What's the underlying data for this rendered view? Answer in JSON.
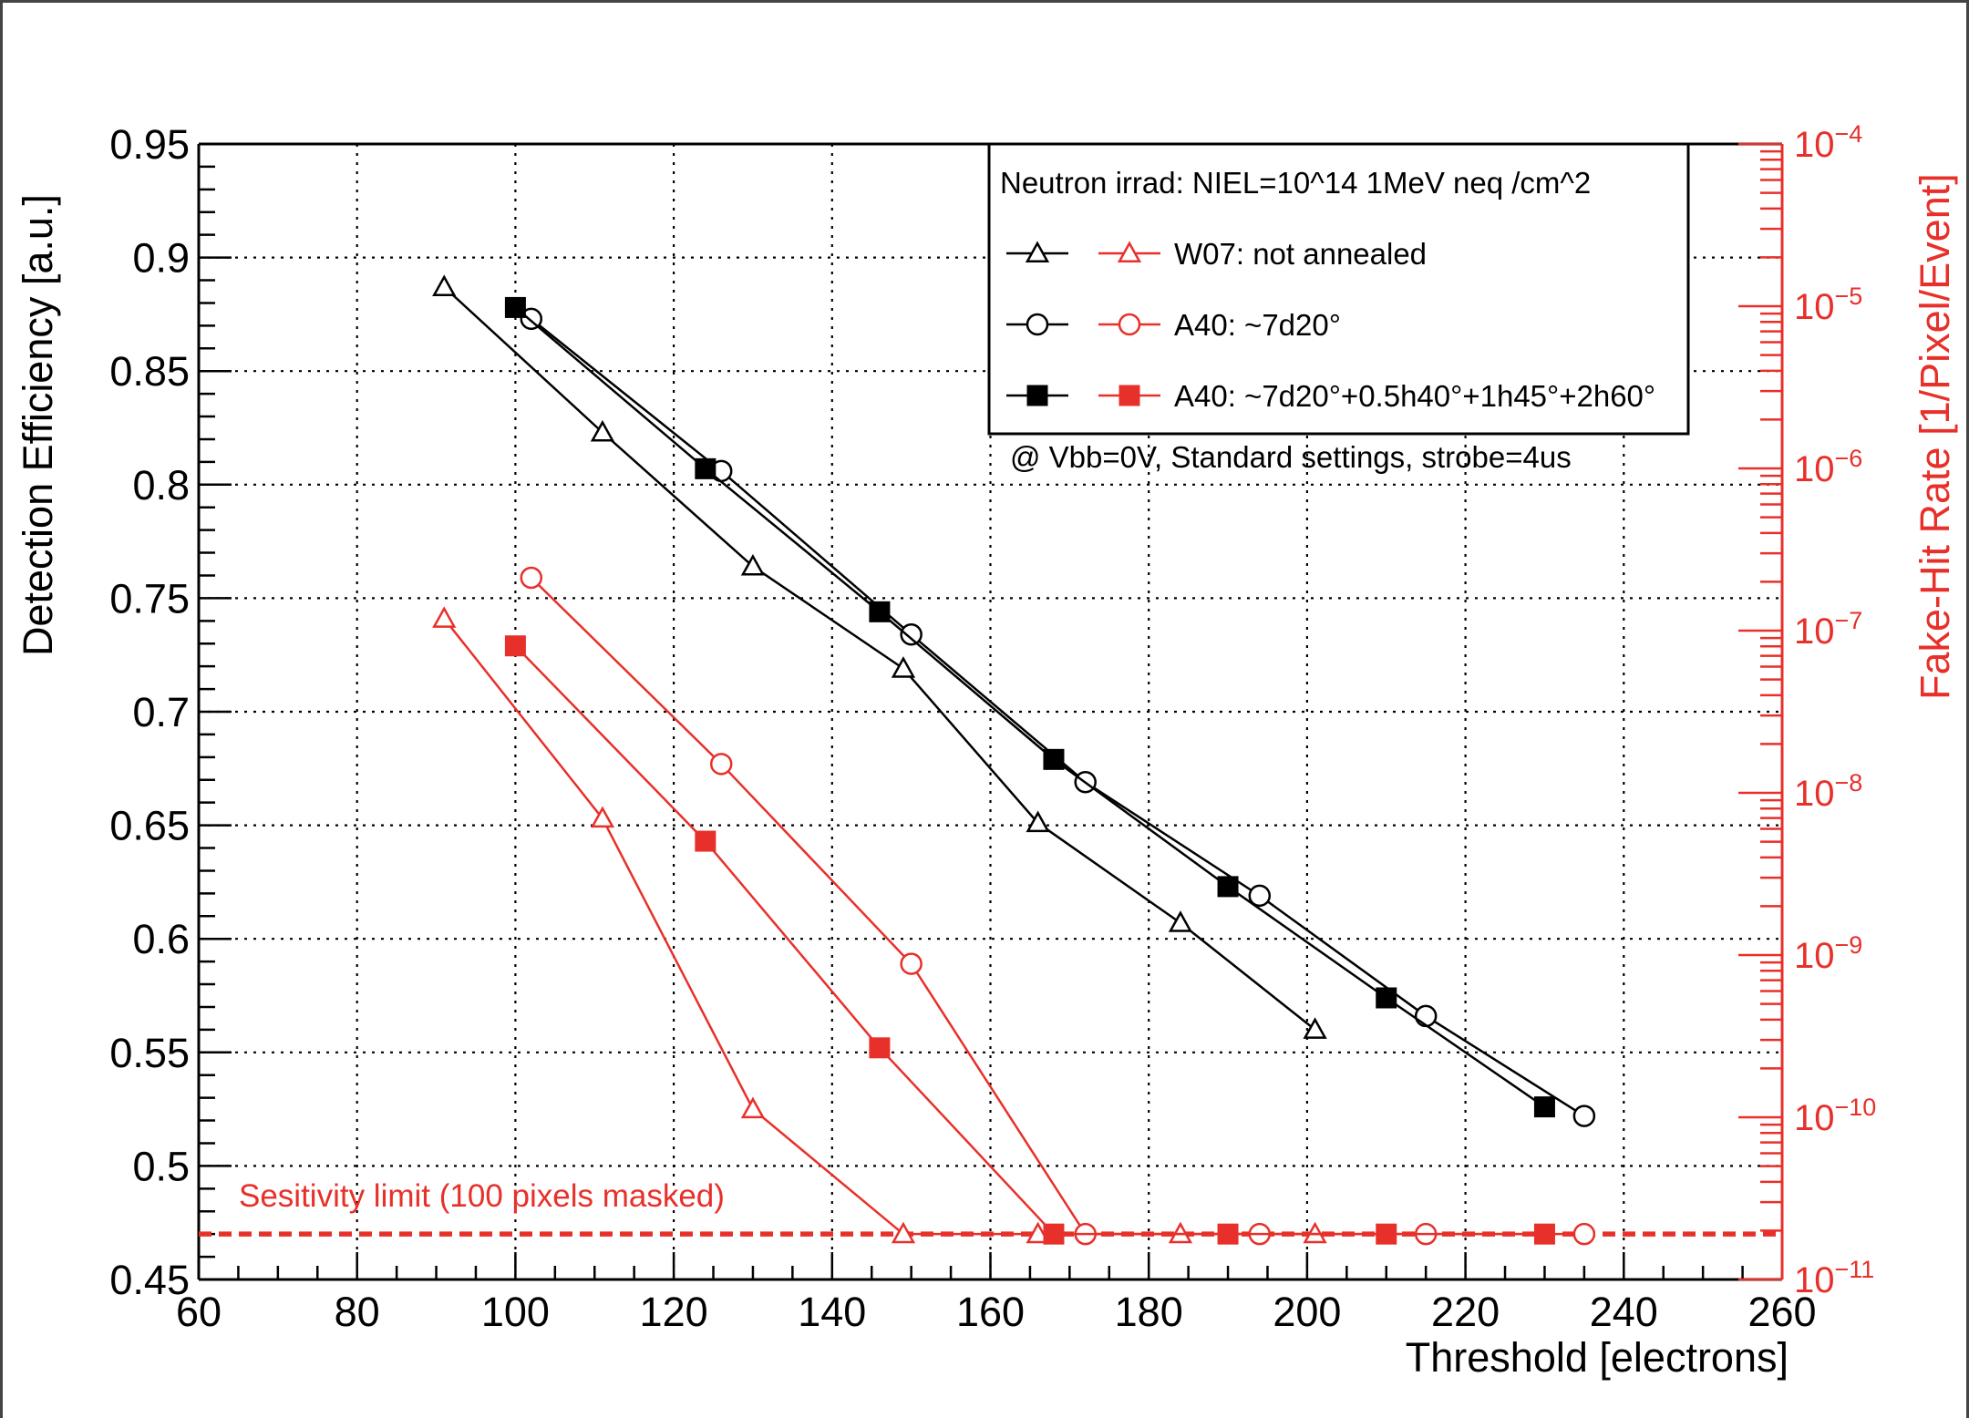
{
  "colors": {
    "black": "#000000",
    "red": "#e8302a",
    "grid": "#000000"
  },
  "chart_data": {
    "type": "line",
    "title": "",
    "xlabel": "Threshold [electrons]",
    "ylabel": "Detection Efficiency [a.u.]",
    "y2label": "Fake-Hit Rate [1/Pixel/Event]",
    "xlim": [
      60,
      260
    ],
    "ylim": [
      0.45,
      0.95
    ],
    "y2lim_log10": [
      -11,
      -4
    ],
    "y2_scale": "log",
    "grid": true,
    "x_ticks": [
      "60",
      "80",
      "100",
      "120",
      "140",
      "160",
      "180",
      "200",
      "220",
      "240",
      "260"
    ],
    "y_ticks": [
      "0.45",
      "0.5",
      "0.55",
      "0.6",
      "0.65",
      "0.7",
      "0.75",
      "0.8",
      "0.85",
      "0.9",
      "0.95"
    ],
    "y2_ticks": [
      {
        "base": "10",
        "exp": "-11"
      },
      {
        "base": "10",
        "exp": "-10"
      },
      {
        "base": "10",
        "exp": "-9"
      },
      {
        "base": "10",
        "exp": "-8"
      },
      {
        "base": "10",
        "exp": "-7"
      },
      {
        "base": "10",
        "exp": "-6"
      },
      {
        "base": "10",
        "exp": "-5"
      },
      {
        "base": "10",
        "exp": "-4"
      }
    ],
    "legend": {
      "placement": "top-right",
      "header": "Neutron irrad: NIEL=10^14 1MeV neq /cm^2",
      "entries": [
        {
          "label": "W07: not annealed",
          "marker": "triangle-open"
        },
        {
          "label": "A40: ~7d20°",
          "marker": "circle-open"
        },
        {
          "label": "A40: ~7d20°+0.5h40°+1h45°+2h60°",
          "marker": "square-filled"
        }
      ]
    },
    "annotations": [
      {
        "text": "@ Vbb=0V, Standard settings, strobe=4us"
      },
      {
        "text": "Sesitivity limit (100 pixels masked)"
      }
    ],
    "sensitivity_limit_y": 0.47,
    "series": [
      {
        "axis": "left",
        "color": "black",
        "marker": "triangle-open",
        "x": [
          91,
          111,
          130,
          149,
          166,
          184,
          201
        ],
        "y": [
          0.887,
          0.823,
          0.764,
          0.719,
          0.651,
          0.607,
          0.56
        ]
      },
      {
        "axis": "left",
        "color": "black",
        "marker": "circle-open",
        "x": [
          102,
          126,
          150,
          172,
          194,
          215,
          235
        ],
        "y": [
          0.873,
          0.806,
          0.734,
          0.669,
          0.619,
          0.566,
          0.522
        ]
      },
      {
        "axis": "left",
        "color": "black",
        "marker": "square-filled",
        "x": [
          100,
          124,
          146,
          168,
          190,
          210,
          230
        ],
        "y": [
          0.878,
          0.807,
          0.744,
          0.679,
          0.623,
          0.574,
          0.526
        ]
      },
      {
        "axis": "right",
        "color": "red",
        "marker": "triangle-open",
        "x": [
          91,
          111,
          130,
          149,
          166,
          184,
          201
        ],
        "y": [
          0.741,
          0.653,
          0.525,
          0.47,
          0.47,
          0.47,
          0.47
        ]
      },
      {
        "axis": "right",
        "color": "red",
        "marker": "circle-open",
        "x": [
          102,
          126,
          150,
          172,
          194,
          215,
          235
        ],
        "y": [
          0.759,
          0.677,
          0.589,
          0.47,
          0.47,
          0.47,
          0.47
        ]
      },
      {
        "axis": "right",
        "color": "red",
        "marker": "square-filled",
        "x": [
          100,
          124,
          146,
          168,
          190,
          210,
          230
        ],
        "y": [
          0.729,
          0.643,
          0.552,
          0.47,
          0.47,
          0.47,
          0.47
        ]
      }
    ]
  }
}
